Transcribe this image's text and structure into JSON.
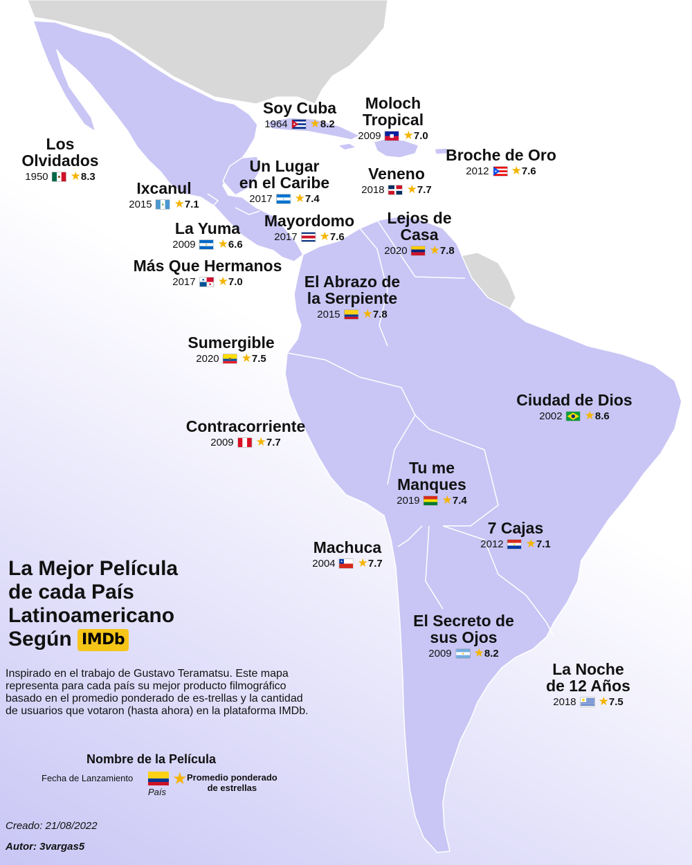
{
  "heading": {
    "lines": [
      "La Mejor Película",
      "de cada País",
      "Latinoamericano",
      "Según"
    ],
    "logo": "IMDb"
  },
  "description": "Inspirado en el trabajo de Gustavo Teramatsu. Este mapa representa para cada país su mejor producto filmográfico basado en el promedio ponderado de es-trellas y la cantidad de usuarios que votaron (hasta ahora) en la plataforma IMDb.",
  "legend": {
    "title": "Nombre de la Película",
    "date": "Fecha de Lanzamiento",
    "country": "País",
    "rating_line1": "Promedio ponderado",
    "rating_line2": "de estrellas",
    "star": "★"
  },
  "created": "Creado: 21/08/2022",
  "author": "Autor: 3vargas5",
  "colors": {
    "land_highlight": "#c9c6f5",
    "land_other": "#d8d8d8",
    "water": "#ffffff",
    "star": "#f5b400",
    "imdb": "#f5c518"
  },
  "films": [
    {
      "id": "mexico",
      "title_lines": [
        "Los",
        "Olvidados"
      ],
      "year": "1950",
      "rating": "8.3",
      "flag": "mexico"
    },
    {
      "id": "guatemala",
      "title_lines": [
        "Ixcanul"
      ],
      "year": "2015",
      "rating": "7.1",
      "flag": "guatemala"
    },
    {
      "id": "cuba",
      "title_lines": [
        "Soy Cuba"
      ],
      "year": "1964",
      "rating": "8.2",
      "flag": "cuba"
    },
    {
      "id": "haiti",
      "title_lines": [
        "Moloch",
        "Tropical"
      ],
      "year": "2009",
      "rating": "7.0",
      "flag": "haiti"
    },
    {
      "id": "honduras",
      "title_lines": [
        "Un Lugar",
        "en el Caribe"
      ],
      "year": "2017",
      "rating": "7.4",
      "flag": "honduras"
    },
    {
      "id": "dominican",
      "title_lines": [
        "Veneno"
      ],
      "year": "2018",
      "rating": "7.7",
      "flag": "dominican"
    },
    {
      "id": "puertorico",
      "title_lines": [
        "Broche de Oro"
      ],
      "year": "2012",
      "rating": "7.6",
      "flag": "puertorico"
    },
    {
      "id": "elsalvador",
      "title_lines": [
        "La Yuma"
      ],
      "year": "2009",
      "rating": "6.6",
      "flag": "nicaragua"
    },
    {
      "id": "costarica",
      "title_lines": [
        "Mayordomo"
      ],
      "year": "2017",
      "rating": "7.6",
      "flag": "costarica"
    },
    {
      "id": "venezuela",
      "title_lines": [
        "Lejos de",
        "Casa"
      ],
      "year": "2020",
      "rating": "7.8",
      "flag": "venezuela"
    },
    {
      "id": "panama",
      "title_lines": [
        "Más Que Hermanos"
      ],
      "year": "2017",
      "rating": "7.0",
      "flag": "panama"
    },
    {
      "id": "colombia",
      "title_lines": [
        "El Abrazo de",
        "la Serpiente"
      ],
      "year": "2015",
      "rating": "7.8",
      "flag": "colombia"
    },
    {
      "id": "ecuador",
      "title_lines": [
        "Sumergible"
      ],
      "year": "2020",
      "rating": "7.5",
      "flag": "ecuador"
    },
    {
      "id": "peru",
      "title_lines": [
        "Contracorriente"
      ],
      "year": "2009",
      "rating": "7.7",
      "flag": "peru"
    },
    {
      "id": "brazil",
      "title_lines": [
        "Ciudad de Dios"
      ],
      "year": "2002",
      "rating": "8.6",
      "flag": "brazil"
    },
    {
      "id": "bolivia",
      "title_lines": [
        "Tu me",
        "Manques"
      ],
      "year": "2019",
      "rating": "7.4",
      "flag": "bolivia"
    },
    {
      "id": "paraguay",
      "title_lines": [
        "7 Cajas"
      ],
      "year": "2012",
      "rating": "7.1",
      "flag": "paraguay"
    },
    {
      "id": "chile",
      "title_lines": [
        "Machuca"
      ],
      "year": "2004",
      "rating": "7.7",
      "flag": "chile"
    },
    {
      "id": "argentina",
      "title_lines": [
        "El Secreto de",
        "sus Ojos"
      ],
      "year": "2009",
      "rating": "8.2",
      "flag": "argentina"
    },
    {
      "id": "uruguay",
      "title_lines": [
        "La Noche",
        "de 12 Años"
      ],
      "year": "2018",
      "rating": "7.5",
      "flag": "uruguay"
    }
  ]
}
